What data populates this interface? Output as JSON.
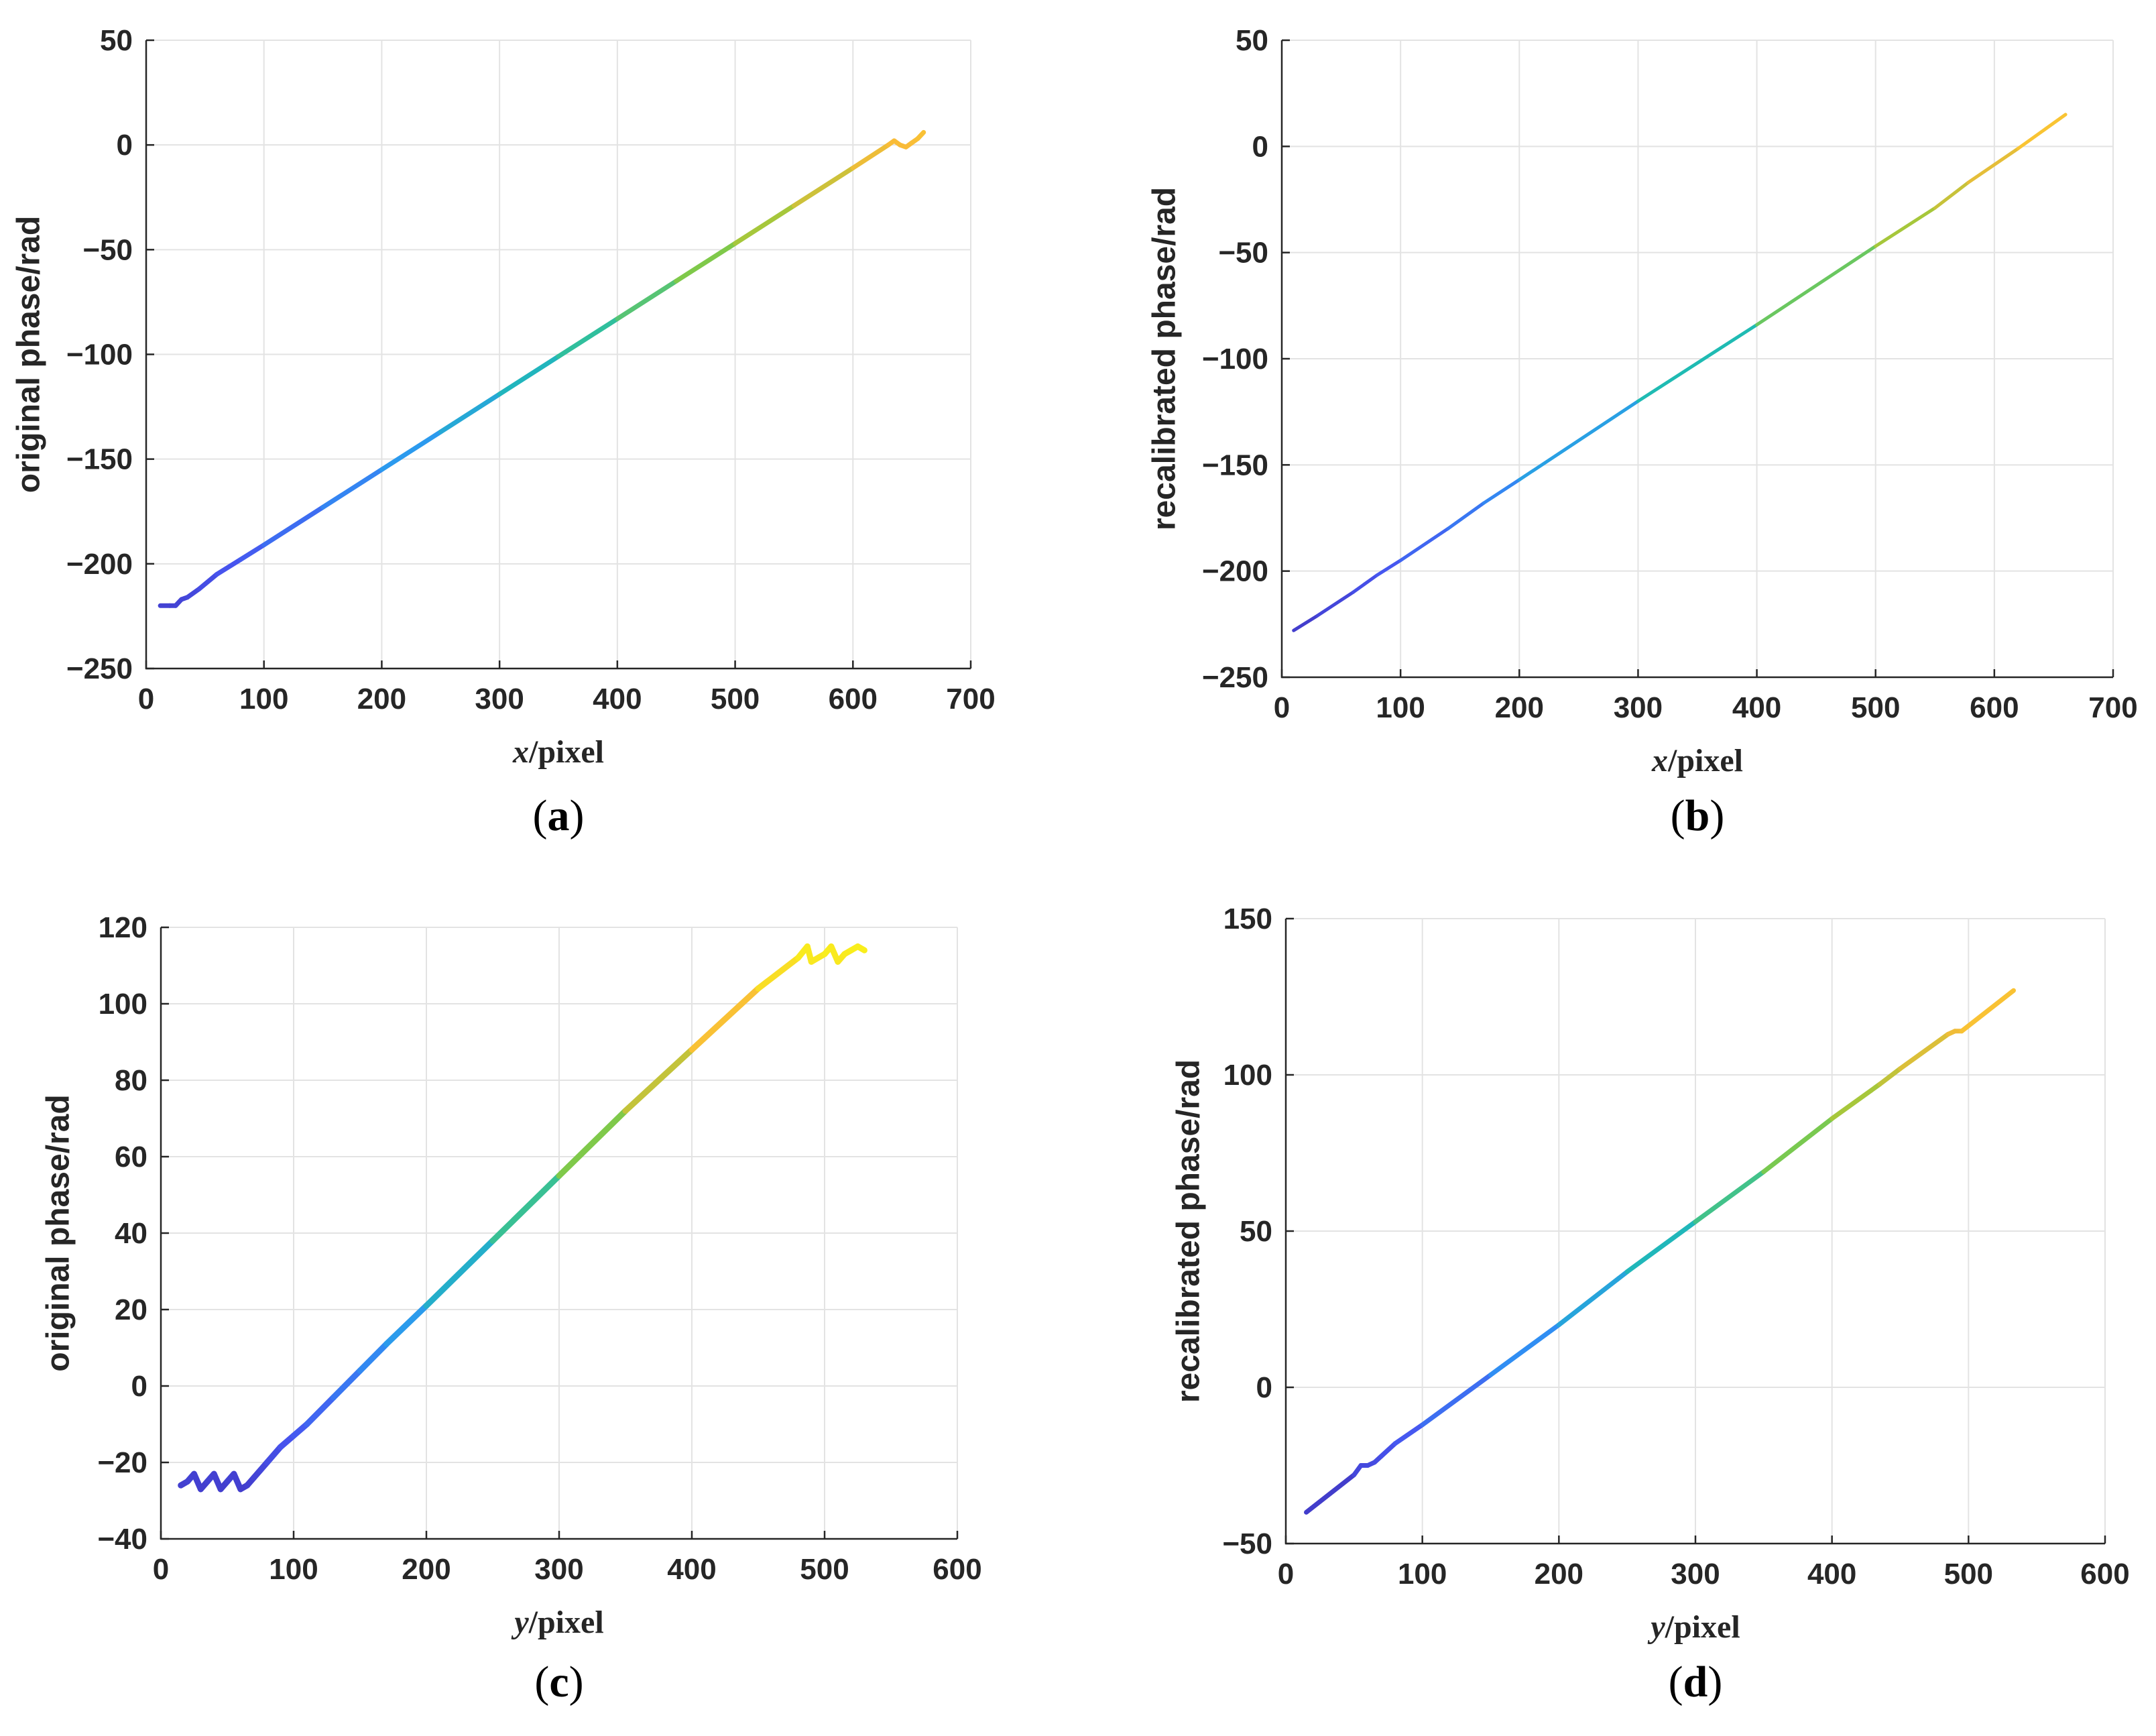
{
  "chart_data": [
    {
      "id": "a",
      "type": "line",
      "caption_label": "a",
      "ylabel": "original phase/rad",
      "xlabel_var": "x",
      "xlabel_unit": "/pixel",
      "xlim": [
        0,
        700
      ],
      "ylim": [
        -250,
        50
      ],
      "xticks": [
        0,
        100,
        200,
        300,
        400,
        500,
        600,
        700
      ],
      "yticks": [
        -250,
        -200,
        -150,
        -100,
        -50,
        0,
        50
      ],
      "colormap": [
        "#3e26a8",
        "#4755f0",
        "#2c97f3",
        "#1ebdb0",
        "#8ccb3c",
        "#f9bb38",
        "#f9fb15"
      ],
      "series": [
        {
          "name": "phase",
          "x": [
            12,
            20,
            25,
            30,
            35,
            45,
            60,
            80,
            100,
            150,
            200,
            250,
            300,
            350,
            400,
            450,
            500,
            550,
            600,
            630,
            635,
            640,
            645,
            650,
            655,
            660
          ],
          "y": [
            -220,
            -220,
            -220,
            -217,
            -216,
            -212,
            -205,
            -198,
            -191,
            -173,
            -155,
            -137,
            -119,
            -101,
            -83,
            -65,
            -47,
            -29,
            -11,
            0,
            2,
            0,
            -1,
            1,
            3,
            6
          ]
        }
      ]
    },
    {
      "id": "b",
      "type": "line",
      "caption_label": "b",
      "ylabel": "recalibrated phase/rad",
      "xlabel_var": "x",
      "xlabel_unit": "/pixel",
      "xlim": [
        0,
        700
      ],
      "ylim": [
        -250,
        50
      ],
      "xticks": [
        0,
        100,
        200,
        300,
        400,
        500,
        600,
        700
      ],
      "yticks": [
        -250,
        -200,
        -150,
        -100,
        -50,
        0,
        50
      ],
      "colormap": [
        "#3e26a8",
        "#4755f0",
        "#2c97f3",
        "#1ebdb0",
        "#8ccb3c",
        "#f9bb38",
        "#f9fb15"
      ],
      "series": [
        {
          "name": "phase",
          "x": [
            10,
            30,
            60,
            80,
            100,
            140,
            170,
            200,
            300,
            400,
            500,
            550,
            578,
            620,
            660
          ],
          "y": [
            -228,
            -221,
            -210,
            -202,
            -195,
            -180,
            -168,
            -157,
            -120,
            -84,
            -47,
            -29,
            -17,
            -1,
            15
          ]
        }
      ]
    },
    {
      "id": "c",
      "type": "line",
      "caption_label": "c",
      "ylabel": "original phase/rad",
      "xlabel_var": "y",
      "xlabel_unit": "/pixel",
      "xlim": [
        0,
        600
      ],
      "ylim": [
        -40,
        120
      ],
      "xticks": [
        0,
        100,
        200,
        300,
        400,
        500,
        600
      ],
      "yticks": [
        -40,
        -20,
        0,
        20,
        40,
        60,
        80,
        100,
        120
      ],
      "colormap": [
        "#3e26a8",
        "#4755f0",
        "#2c97f3",
        "#1ebdb0",
        "#8ccb3c",
        "#f9bb38",
        "#f9fb15"
      ],
      "series": [
        {
          "name": "phase",
          "x": [
            15,
            20,
            25,
            30,
            35,
            40,
            45,
            50,
            55,
            60,
            65,
            70,
            75,
            80,
            90,
            100,
            110,
            130,
            150,
            170,
            200,
            250,
            300,
            350,
            400,
            450,
            480,
            487,
            490,
            500,
            505,
            510,
            515,
            520,
            525,
            530
          ],
          "y": [
            -26,
            -25,
            -23,
            -27,
            -25,
            -23,
            -27,
            -25,
            -23,
            -27,
            -26,
            -24,
            -22,
            -20,
            -16,
            -13,
            -10,
            -3,
            4,
            11,
            21,
            38,
            55,
            72,
            88,
            104,
            112,
            115,
            111,
            113,
            115,
            111,
            113,
            114,
            115,
            114
          ]
        }
      ]
    },
    {
      "id": "d",
      "type": "line",
      "caption_label": "d",
      "ylabel": "recalibrated phase/rad",
      "xlabel_var": "y",
      "xlabel_unit": "/pixel",
      "xlim": [
        0,
        600
      ],
      "ylim": [
        -50,
        150
      ],
      "xticks": [
        0,
        100,
        200,
        300,
        400,
        500,
        600
      ],
      "yticks": [
        -50,
        0,
        50,
        100,
        150
      ],
      "colormap": [
        "#3e26a8",
        "#4755f0",
        "#2c97f3",
        "#1ebdb0",
        "#8ccb3c",
        "#f9bb38",
        "#f9fb15"
      ],
      "series": [
        {
          "name": "phase",
          "x": [
            15,
            50,
            55,
            60,
            65,
            70,
            80,
            100,
            150,
            200,
            250,
            300,
            350,
            400,
            435,
            450,
            485,
            490,
            495,
            533
          ],
          "y": [
            -40,
            -28,
            -25,
            -25,
            -24,
            -22,
            -18,
            -12,
            4,
            20,
            37,
            53,
            69,
            86,
            97,
            102,
            113,
            114,
            114,
            127
          ]
        }
      ]
    }
  ]
}
